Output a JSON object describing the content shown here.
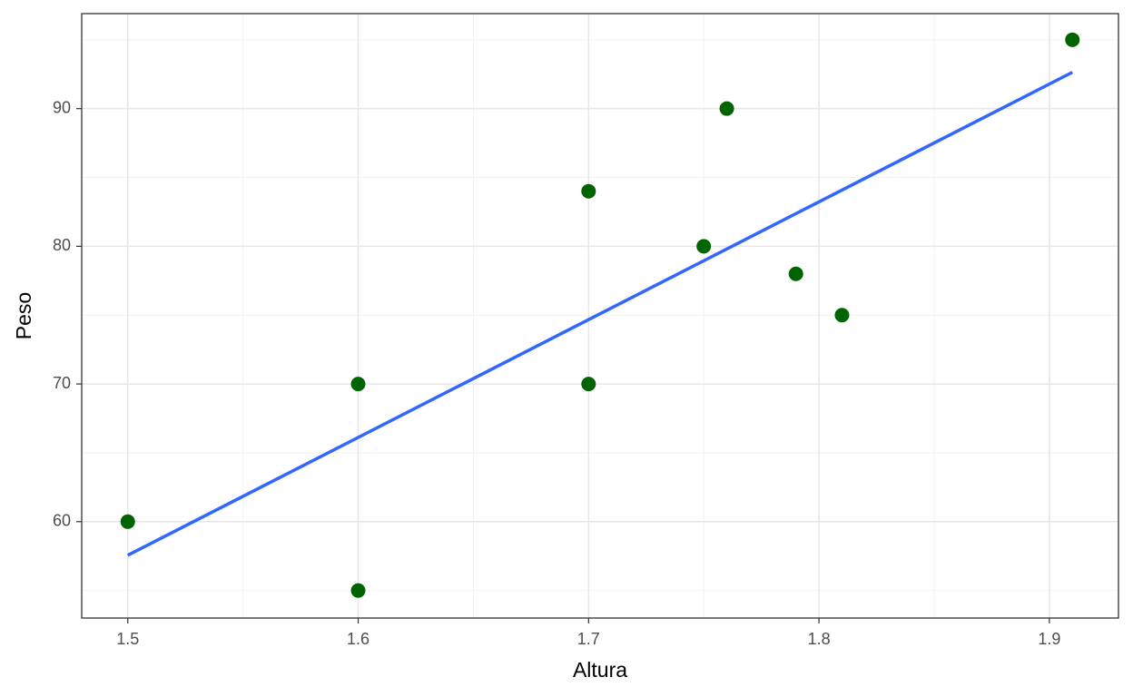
{
  "chart_data": {
    "type": "scatter",
    "x_label": "Altura",
    "y_label": "Peso",
    "x": [
      1.5,
      1.6,
      1.6,
      1.7,
      1.7,
      1.75,
      1.76,
      1.79,
      1.81,
      1.91
    ],
    "values": [
      60,
      70,
      55,
      84,
      70,
      80,
      90,
      78,
      75,
      95
    ],
    "color": "#006400",
    "fit": {
      "x": [
        1.5,
        1.91
      ],
      "values": [
        57.56,
        92.64
      ],
      "color": "#3366ff"
    },
    "xlim": [
      1.48,
      1.93
    ],
    "ylim": [
      53,
      96.9
    ],
    "xticks": [
      1.5,
      1.6,
      1.7,
      1.8,
      1.9
    ],
    "yticks": [
      60,
      70,
      80,
      90
    ],
    "x_minor_ticks": [
      1.55,
      1.65,
      1.75,
      1.85
    ],
    "y_minor_ticks": [
      55,
      65,
      75,
      85,
      95
    ],
    "grid": true
  }
}
